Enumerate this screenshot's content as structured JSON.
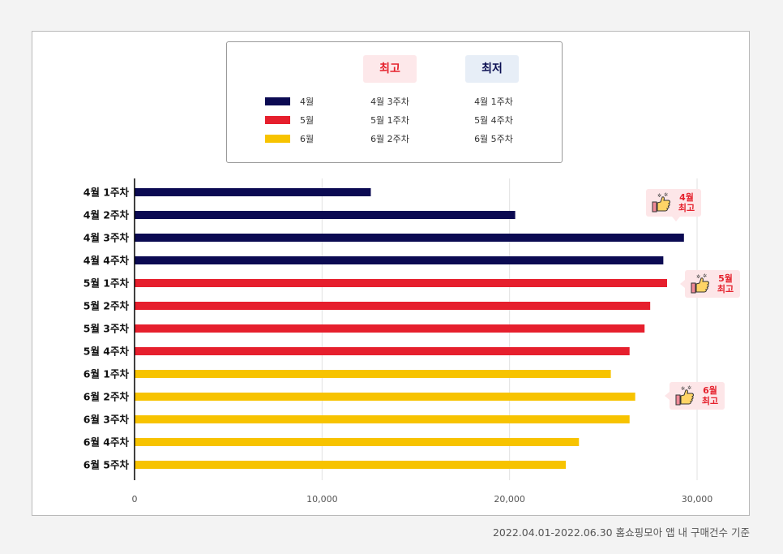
{
  "legend": {
    "header_best": "최고",
    "header_worst": "최저",
    "rows": [
      {
        "month": "4월",
        "best": "4월 3주차",
        "worst": "4월 1주차",
        "color": "#0b0a52"
      },
      {
        "month": "5월",
        "best": "5월 1주차",
        "worst": "5월 4주차",
        "color": "#e61f2d"
      },
      {
        "month": "6월",
        "best": "6월 2주차",
        "worst": "6월 5주차",
        "color": "#f7c300"
      }
    ]
  },
  "badges": [
    {
      "line1": "4월",
      "line2": "최고"
    },
    {
      "line1": "5월",
      "line2": "최고"
    },
    {
      "line1": "6월",
      "line2": "최고"
    }
  ],
  "footnote": "2022.04.01-2022.06.30 홈쇼핑모아 앱 내 구매건수 기준",
  "chart_data": {
    "type": "bar",
    "orientation": "horizontal",
    "categories": [
      "4월 1주차",
      "4월 2주차",
      "4월 3주차",
      "4월 4주차",
      "5월 1주차",
      "5월 2주차",
      "5월 3주차",
      "5월 4주차",
      "6월 1주차",
      "6월 2주차",
      "6월 3주차",
      "6월 4주차",
      "6월 5주차"
    ],
    "values": [
      12600,
      20300,
      29300,
      28200,
      28400,
      27500,
      27200,
      26400,
      25400,
      26700,
      26400,
      23700,
      23000
    ],
    "colors": [
      "#0b0a52",
      "#0b0a52",
      "#0b0a52",
      "#0b0a52",
      "#e61f2d",
      "#e61f2d",
      "#e61f2d",
      "#e61f2d",
      "#f7c300",
      "#f7c300",
      "#f7c300",
      "#f7c300",
      "#f7c300"
    ],
    "xticks": [
      "0",
      "10,000",
      "20,000",
      "30,000"
    ],
    "xtick_values": [
      0,
      10000,
      20000,
      30000
    ],
    "xlim": [
      0,
      30000
    ],
    "grid": "vertical"
  }
}
